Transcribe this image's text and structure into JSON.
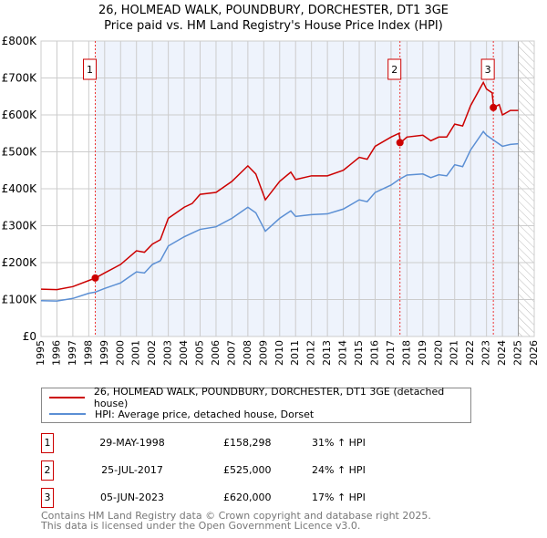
{
  "title_line1": "26, HOLMEAD WALK, POUNDBURY, DORCHESTER, DT1 3GE",
  "title_line2": "Price paid vs. HM Land Registry's House Price Index (HPI)",
  "chart_data": {
    "type": "line",
    "title": "26, HOLMEAD WALK, POUNDBURY, DORCHESTER, DT1 3GE - Price paid vs. HM Land Registry's House Price Index (HPI)",
    "xlim": [
      1995,
      2026
    ],
    "ylim": [
      0,
      800000
    ],
    "x_ticks": [
      "1995",
      "1996",
      "1997",
      "1998",
      "1999",
      "2000",
      "2001",
      "2002",
      "2003",
      "2004",
      "2005",
      "2006",
      "2007",
      "2008",
      "2009",
      "2010",
      "2011",
      "2012",
      "2013",
      "2014",
      "2015",
      "2016",
      "2017",
      "2018",
      "2019",
      "2020",
      "2021",
      "2022",
      "2023",
      "2024",
      "2025",
      "2026"
    ],
    "y_ticks": [
      {
        "v": 0,
        "label": "£0"
      },
      {
        "v": 100000,
        "label": "£100K"
      },
      {
        "v": 200000,
        "label": "£200K"
      },
      {
        "v": 300000,
        "label": "£300K"
      },
      {
        "v": 400000,
        "label": "£400K"
      },
      {
        "v": 500000,
        "label": "£500K"
      },
      {
        "v": 600000,
        "label": "£600K"
      },
      {
        "v": 700000,
        "label": "£700K"
      },
      {
        "v": 800000,
        "label": "£800K"
      }
    ],
    "grid": true,
    "colors": {
      "property": "#cc0000",
      "hpi": "#5b8fd4",
      "shade": "#eef3fc"
    },
    "series": [
      {
        "name": "26, HOLMEAD WALK, POUNDBURY, DORCHESTER, DT1 3GE (detached house)",
        "x": [
          1995,
          1996,
          1997,
          1998.4,
          1999,
          2000,
          2001,
          2001.5,
          2002,
          2002.5,
          2003,
          2004,
          2004.5,
          2005,
          2006,
          2007,
          2008,
          2008.5,
          2009.1,
          2010,
          2010.7,
          2011,
          2012,
          2013,
          2014,
          2015,
          2015.5,
          2016,
          2017,
          2017.5,
          2017.6,
          2018,
          2019,
          2019.5,
          2020,
          2020.5,
          2021,
          2021.5,
          2022,
          2022.8,
          2023,
          2023.35,
          2023.45,
          2023.8,
          2024,
          2024.5,
          2025
        ],
        "y": [
          128000,
          127000,
          135000,
          158000,
          172000,
          195000,
          232000,
          228000,
          250000,
          262000,
          320000,
          350000,
          360000,
          385000,
          390000,
          420000,
          462000,
          440000,
          370000,
          420000,
          445000,
          425000,
          435000,
          435000,
          450000,
          485000,
          480000,
          515000,
          540000,
          550000,
          525000,
          540000,
          545000,
          530000,
          540000,
          540000,
          575000,
          570000,
          625000,
          688000,
          670000,
          660000,
          620000,
          628000,
          600000,
          612000,
          612000
        ]
      },
      {
        "name": "HPI: Average price, detached house, Dorset",
        "x": [
          1995,
          1996,
          1997,
          1998,
          1998.4,
          1999,
          2000,
          2001,
          2001.5,
          2002,
          2002.5,
          2003,
          2004,
          2005,
          2006,
          2007,
          2008,
          2008.5,
          2009.1,
          2010,
          2010.7,
          2011,
          2012,
          2013,
          2014,
          2015,
          2015.5,
          2016,
          2017,
          2017.5,
          2018,
          2019,
          2019.5,
          2020,
          2020.5,
          2021,
          2021.5,
          2022,
          2022.8,
          2023,
          2023.5,
          2024,
          2024.5,
          2025
        ],
        "y": [
          97000,
          96000,
          103000,
          117000,
          120000,
          130000,
          145000,
          175000,
          172000,
          195000,
          205000,
          245000,
          270000,
          290000,
          297000,
          320000,
          350000,
          335000,
          285000,
          320000,
          340000,
          325000,
          330000,
          332000,
          345000,
          370000,
          365000,
          390000,
          410000,
          425000,
          437000,
          440000,
          430000,
          438000,
          435000,
          465000,
          460000,
          505000,
          555000,
          545000,
          530000,
          515000,
          520000,
          522000
        ]
      }
    ],
    "sales": [
      {
        "label": "1",
        "x": 1998.41,
        "y": 158298
      },
      {
        "label": "2",
        "x": 2017.56,
        "y": 525000
      },
      {
        "label": "3",
        "x": 2023.43,
        "y": 620000
      }
    ],
    "shade_range": [
      1998.41,
      2025.0
    ],
    "forecast_hatch_from": 2025.0
  },
  "legend": {
    "property": "26, HOLMEAD WALK, POUNDBURY, DORCHESTER, DT1 3GE (detached house)",
    "hpi": "HPI: Average price, detached house, Dorset"
  },
  "transactions": [
    {
      "num": "1",
      "date": "29-MAY-1998",
      "price": "£158,298",
      "hpi": "31% ↑ HPI"
    },
    {
      "num": "2",
      "date": "25-JUL-2017",
      "price": "£525,000",
      "hpi": "24% ↑ HPI"
    },
    {
      "num": "3",
      "date": "05-JUN-2023",
      "price": "£620,000",
      "hpi": "17% ↑ HPI"
    }
  ],
  "footer": {
    "line1": "Contains HM Land Registry data © Crown copyright and database right 2025.",
    "line2": "This data is licensed under the Open Government Licence v3.0."
  }
}
